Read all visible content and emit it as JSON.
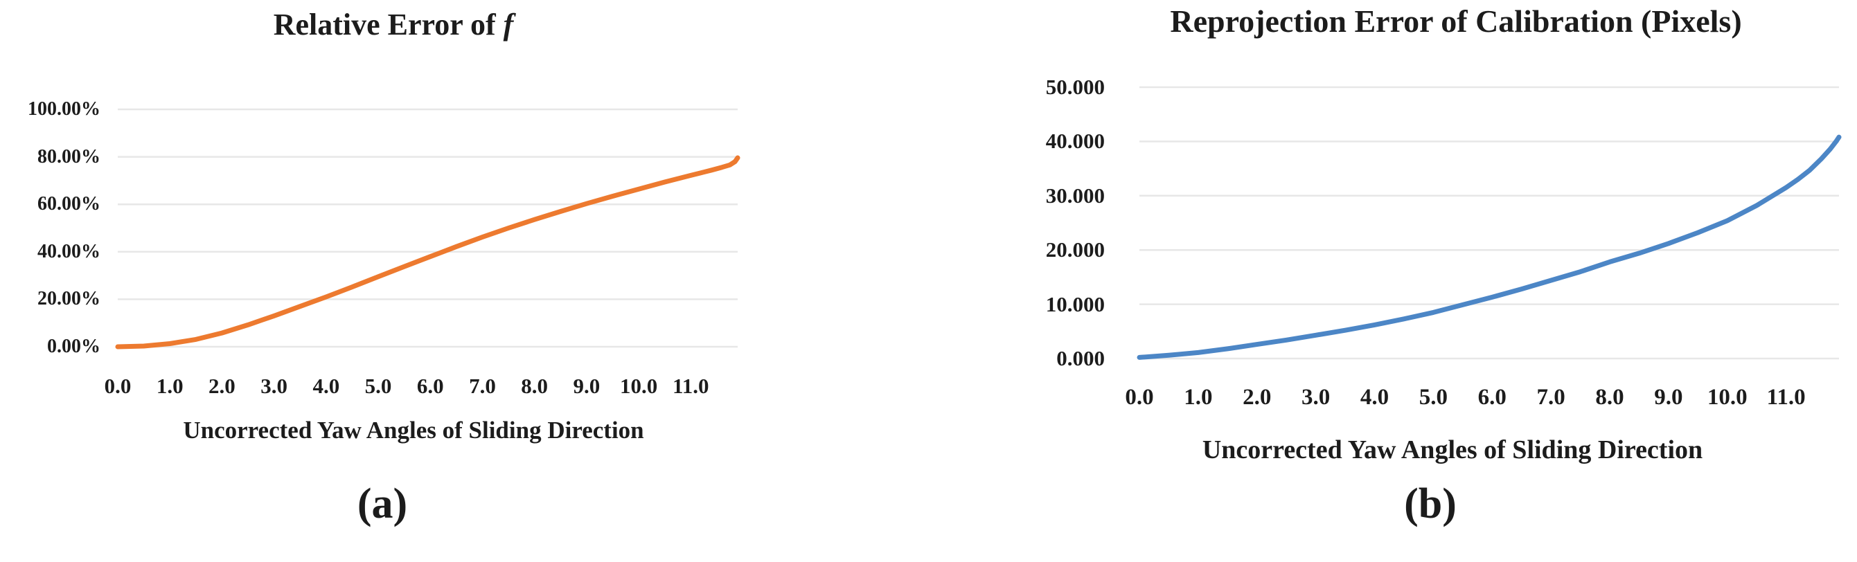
{
  "figure": {
    "background": "#ffffff",
    "text_color": "#1c1c1c",
    "gridline_color": "#e7e7e7"
  },
  "panels": [
    {
      "caption": "(a)"
    },
    {
      "caption": "(b)"
    }
  ],
  "chart_data": [
    {
      "type": "line",
      "title_plain": "Relative Error of f",
      "title_parts": [
        {
          "text": "Relative Error of ",
          "italic": false
        },
        {
          "text": "f",
          "italic": true
        }
      ],
      "xlabel": "Uncorrected Yaw Angles of Sliding Direction",
      "x_tick_labels": [
        "0.0",
        "1.0",
        "2.0",
        "3.0",
        "4.0",
        "5.0",
        "6.0",
        "7.0",
        "8.0",
        "9.0",
        "10.0",
        "11.0"
      ],
      "x_tick_values": [
        0,
        1,
        2,
        3,
        4,
        5,
        6,
        7,
        8,
        9,
        10,
        11
      ],
      "xlim": [
        0,
        11.9
      ],
      "y_tick_labels": [
        "100.00%",
        "80.00%",
        "60.00%",
        "40.00%",
        "20.00%",
        "0.00%"
      ],
      "y_tick_values": [
        100,
        80,
        60,
        40,
        20,
        0
      ],
      "ylim": [
        0,
        100
      ],
      "grid": true,
      "legend": "none",
      "line_color": "#ED7A2F",
      "series": [
        {
          "name": "Relative Error of f (%)",
          "x": [
            0,
            0.5,
            1,
            1.5,
            2,
            2.5,
            3,
            3.5,
            4,
            4.5,
            5,
            5.5,
            6,
            6.5,
            7,
            7.5,
            8,
            8.5,
            9,
            9.5,
            10,
            10.5,
            11,
            11.2,
            11.4,
            11.6,
            11.75,
            11.85,
            11.9
          ],
          "y": [
            0.0,
            0.3,
            1.3,
            3.1,
            5.8,
            9.2,
            13.0,
            17.0,
            21.0,
            25.2,
            29.5,
            33.8,
            38.0,
            42.2,
            46.2,
            50.0,
            53.6,
            57.0,
            60.3,
            63.4,
            66.4,
            69.4,
            72.2,
            73.3,
            74.4,
            75.6,
            76.6,
            78.0,
            79.6
          ]
        }
      ]
    },
    {
      "type": "line",
      "title_plain": "Reprojection Error of Calibration (Pixels)",
      "title_parts": [
        {
          "text": "Reprojection Error of Calibration (Pixels)",
          "italic": false
        }
      ],
      "xlabel": "Uncorrected Yaw Angles of Sliding Direction",
      "x_tick_labels": [
        "0.0",
        "1.0",
        "2.0",
        "3.0",
        "4.0",
        "5.0",
        "6.0",
        "7.0",
        "8.0",
        "9.0",
        "10.0",
        "11.0"
      ],
      "x_tick_values": [
        0,
        1,
        2,
        3,
        4,
        5,
        6,
        7,
        8,
        9,
        10,
        11
      ],
      "xlim": [
        0,
        11.9
      ],
      "y_tick_labels": [
        "50.000",
        "40.000",
        "30.000",
        "20.000",
        "10.000",
        "0.000"
      ],
      "y_tick_values": [
        50,
        40,
        30,
        20,
        10,
        0
      ],
      "ylim": [
        0,
        50
      ],
      "grid": true,
      "legend": "none",
      "line_color": "#4C86C6",
      "series": [
        {
          "name": "Reprojection error (pixels)",
          "x": [
            0,
            0.5,
            1,
            1.5,
            2,
            2.5,
            3,
            3.5,
            4,
            4.5,
            5,
            5.5,
            6,
            6.5,
            7,
            7.5,
            8,
            8.5,
            9,
            9.5,
            10,
            10.5,
            11,
            11.2,
            11.4,
            11.6,
            11.75,
            11.85,
            11.9
          ],
          "y": [
            0.2,
            0.6,
            1.1,
            1.8,
            2.6,
            3.4,
            4.3,
            5.2,
            6.2,
            7.3,
            8.5,
            9.9,
            11.3,
            12.8,
            14.4,
            16.0,
            17.8,
            19.4,
            21.2,
            23.2,
            25.4,
            28.2,
            31.5,
            33.0,
            34.7,
            36.8,
            38.6,
            40.0,
            40.8
          ]
        }
      ]
    }
  ]
}
